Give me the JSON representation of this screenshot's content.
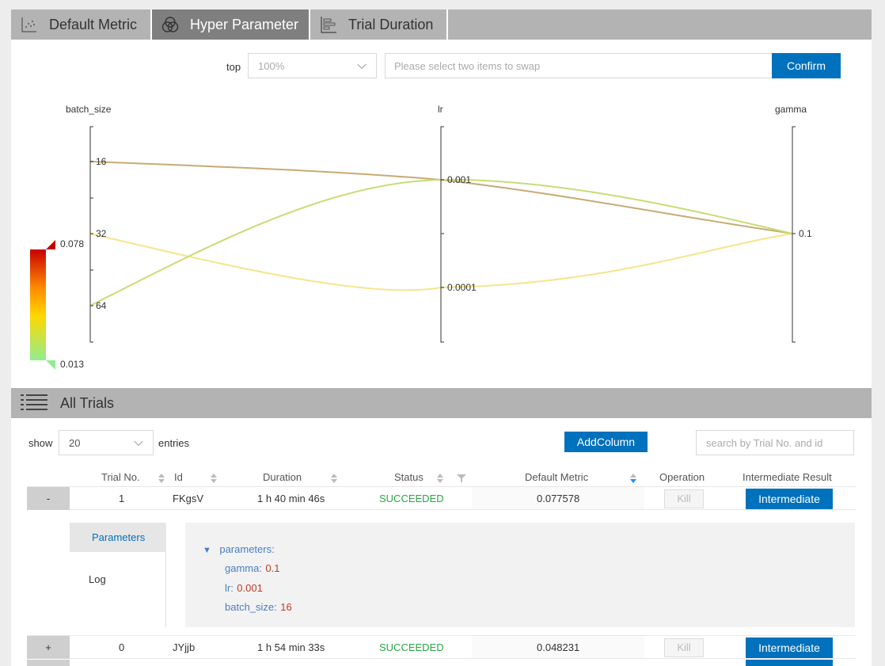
{
  "tabs": [
    {
      "label": "Default Metric",
      "active": false,
      "icon": "scatter-chart-icon"
    },
    {
      "label": "Hyper Parameter",
      "active": true,
      "icon": "venn-circles-icon"
    },
    {
      "label": "Trial Duration",
      "active": false,
      "icon": "bar-chart-icon"
    }
  ],
  "hyper": {
    "top_label": "top",
    "top_value": "100%",
    "swap_placeholder": "Please select two items to swap",
    "confirm_label": "Confirm",
    "axes": [
      {
        "name": "batch_size",
        "ticks": [
          "16",
          "32",
          "64"
        ]
      },
      {
        "name": "lr",
        "ticks": [
          "0.001",
          "0.0001"
        ]
      },
      {
        "name": "gamma",
        "ticks": [
          "0.1"
        ]
      }
    ],
    "color_scale": {
      "max": "0.078",
      "min": "0.013",
      "colors": [
        "#c80000",
        "#ff8c00",
        "#ffd700",
        "#90ee90"
      ]
    },
    "lines": [
      {
        "batch_size": "16",
        "lr": "0.001",
        "gamma": "0.1",
        "color": "#c9aa75"
      },
      {
        "batch_size": "32",
        "lr": "0.0001",
        "gamma": "0.1",
        "color": "#f5e58c"
      },
      {
        "batch_size": "64",
        "lr": "0.001",
        "gamma": "0.1",
        "color": "#c6dd74"
      }
    ]
  },
  "trials": {
    "title": "All Trials",
    "show_label": "show",
    "entries_value": "20",
    "entries_label": "entries",
    "add_column_label": "AddColumn",
    "search_placeholder": "search by Trial No. and id",
    "columns": [
      "Trial No.",
      "Id",
      "Duration",
      "Status",
      "Default Metric",
      "Operation",
      "Intermediate Result"
    ],
    "rows": [
      {
        "expand": "-",
        "no": "1",
        "id": "FKgsV",
        "duration": "1 h 40 min 46s",
        "status": "SUCCEEDED",
        "metric": "0.077578",
        "kill": "Kill",
        "inter": "Intermediate"
      },
      {
        "expand": "+",
        "no": "0",
        "id": "JYjjb",
        "duration": "1 h 54 min 33s",
        "status": "SUCCEEDED",
        "metric": "0.048231",
        "kill": "Kill",
        "inter": "Intermediate"
      }
    ],
    "detail": {
      "tab_parameters": "Parameters",
      "tab_log": "Log",
      "root": "parameters:",
      "params": [
        {
          "key": "gamma:",
          "value": "0.1"
        },
        {
          "key": "lr:",
          "value": "0.001"
        },
        {
          "key": "batch_size:",
          "value": "16"
        }
      ]
    }
  }
}
